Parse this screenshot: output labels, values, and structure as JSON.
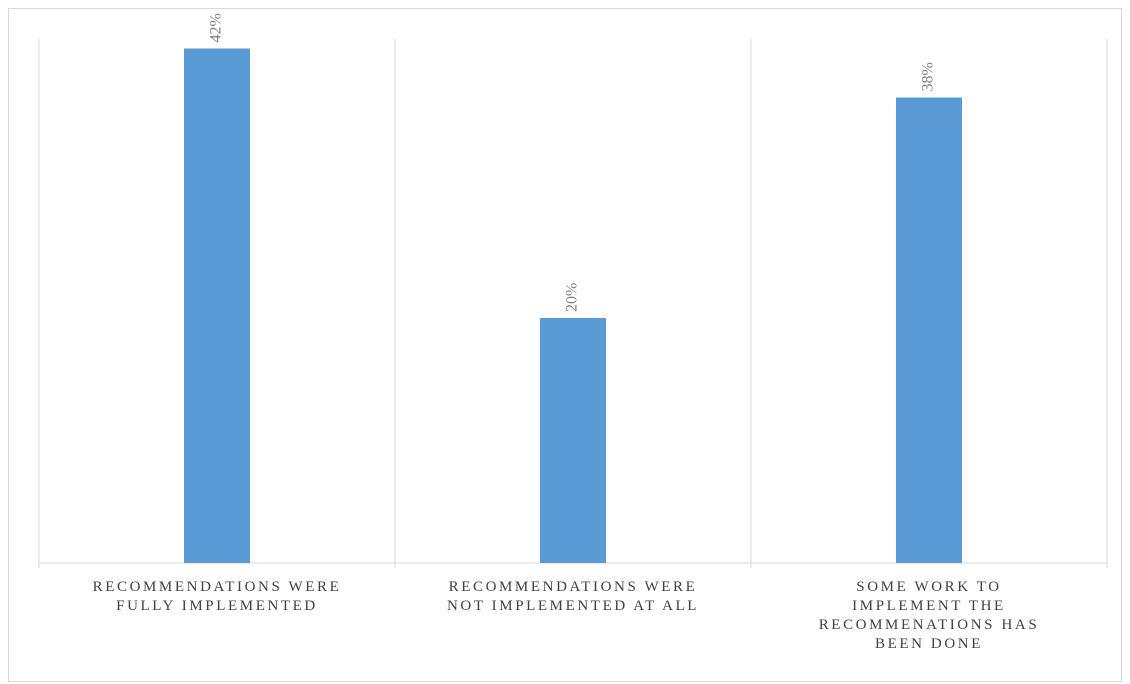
{
  "chart_data": {
    "type": "bar",
    "title": "",
    "xlabel": "",
    "ylabel": "",
    "ylim": [
      0,
      45
    ],
    "grid": "vertical category separators",
    "legend": "none",
    "categories": [
      [
        "RECOMMENDATIONS WERE",
        "FULLY IMPLEMENTED"
      ],
      [
        "RECOMMENDATIONS WERE",
        "NOT IMPLEMENTED AT ALL"
      ],
      [
        "SOME WORK TO",
        "IMPLEMENT THE",
        "RECOMMENATIONS HAS",
        "BEEN DONE"
      ]
    ],
    "values": [
      42,
      20,
      38
    ],
    "data_labels": [
      "42%",
      "20%",
      "38%"
    ],
    "bar_color": "#5b9bd5",
    "grid_color": "#d9d9d9"
  }
}
